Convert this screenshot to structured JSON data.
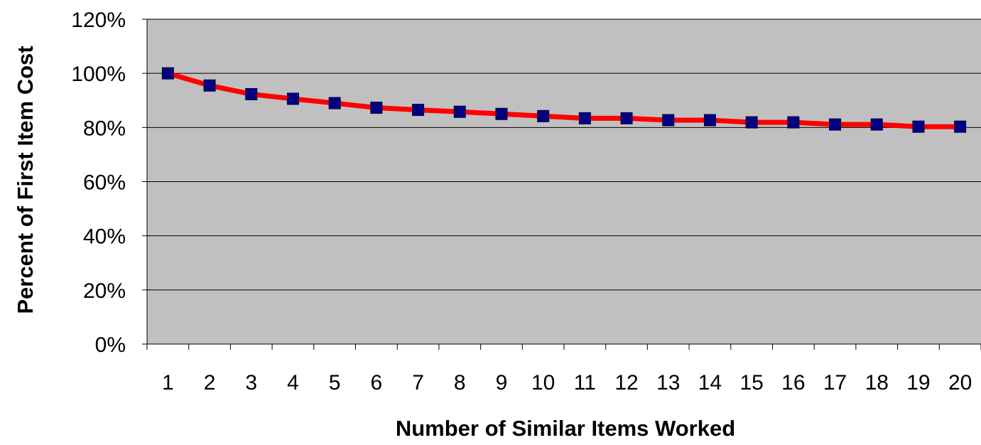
{
  "chart_data": {
    "type": "line",
    "title": "",
    "xlabel": "Number of Similar Items Worked",
    "ylabel": "Percent of First Item Cost",
    "x": [
      1,
      2,
      3,
      4,
      5,
      6,
      7,
      8,
      9,
      10,
      11,
      12,
      13,
      14,
      15,
      16,
      17,
      18,
      19,
      20
    ],
    "x_tick_labels": [
      "1",
      "2",
      "3",
      "4",
      "5",
      "6",
      "7",
      "8",
      "9",
      "10",
      "11",
      "12",
      "13",
      "14",
      "15",
      "16",
      "17",
      "18",
      "19",
      "20"
    ],
    "ylim": [
      0,
      120
    ],
    "y_ticks": [
      0,
      20,
      40,
      60,
      80,
      100,
      120
    ],
    "y_tick_labels": [
      "0%",
      "20%",
      "40%",
      "60%",
      "80%",
      "100%",
      "120%"
    ],
    "series": [
      {
        "values": [
          100,
          95.5,
          92.3,
          90.6,
          89.0,
          87.3,
          86.5,
          85.8,
          85.0,
          84.2,
          83.4,
          83.4,
          82.7,
          82.7,
          81.9,
          81.9,
          81.1,
          81.1,
          80.3,
          80.3
        ]
      }
    ],
    "grid": "horizontal",
    "legend": "none",
    "colors": {
      "plot_background": "#c0c0c0",
      "line": "#ff0000",
      "marker": "#000080",
      "gridline": "#000000"
    }
  }
}
